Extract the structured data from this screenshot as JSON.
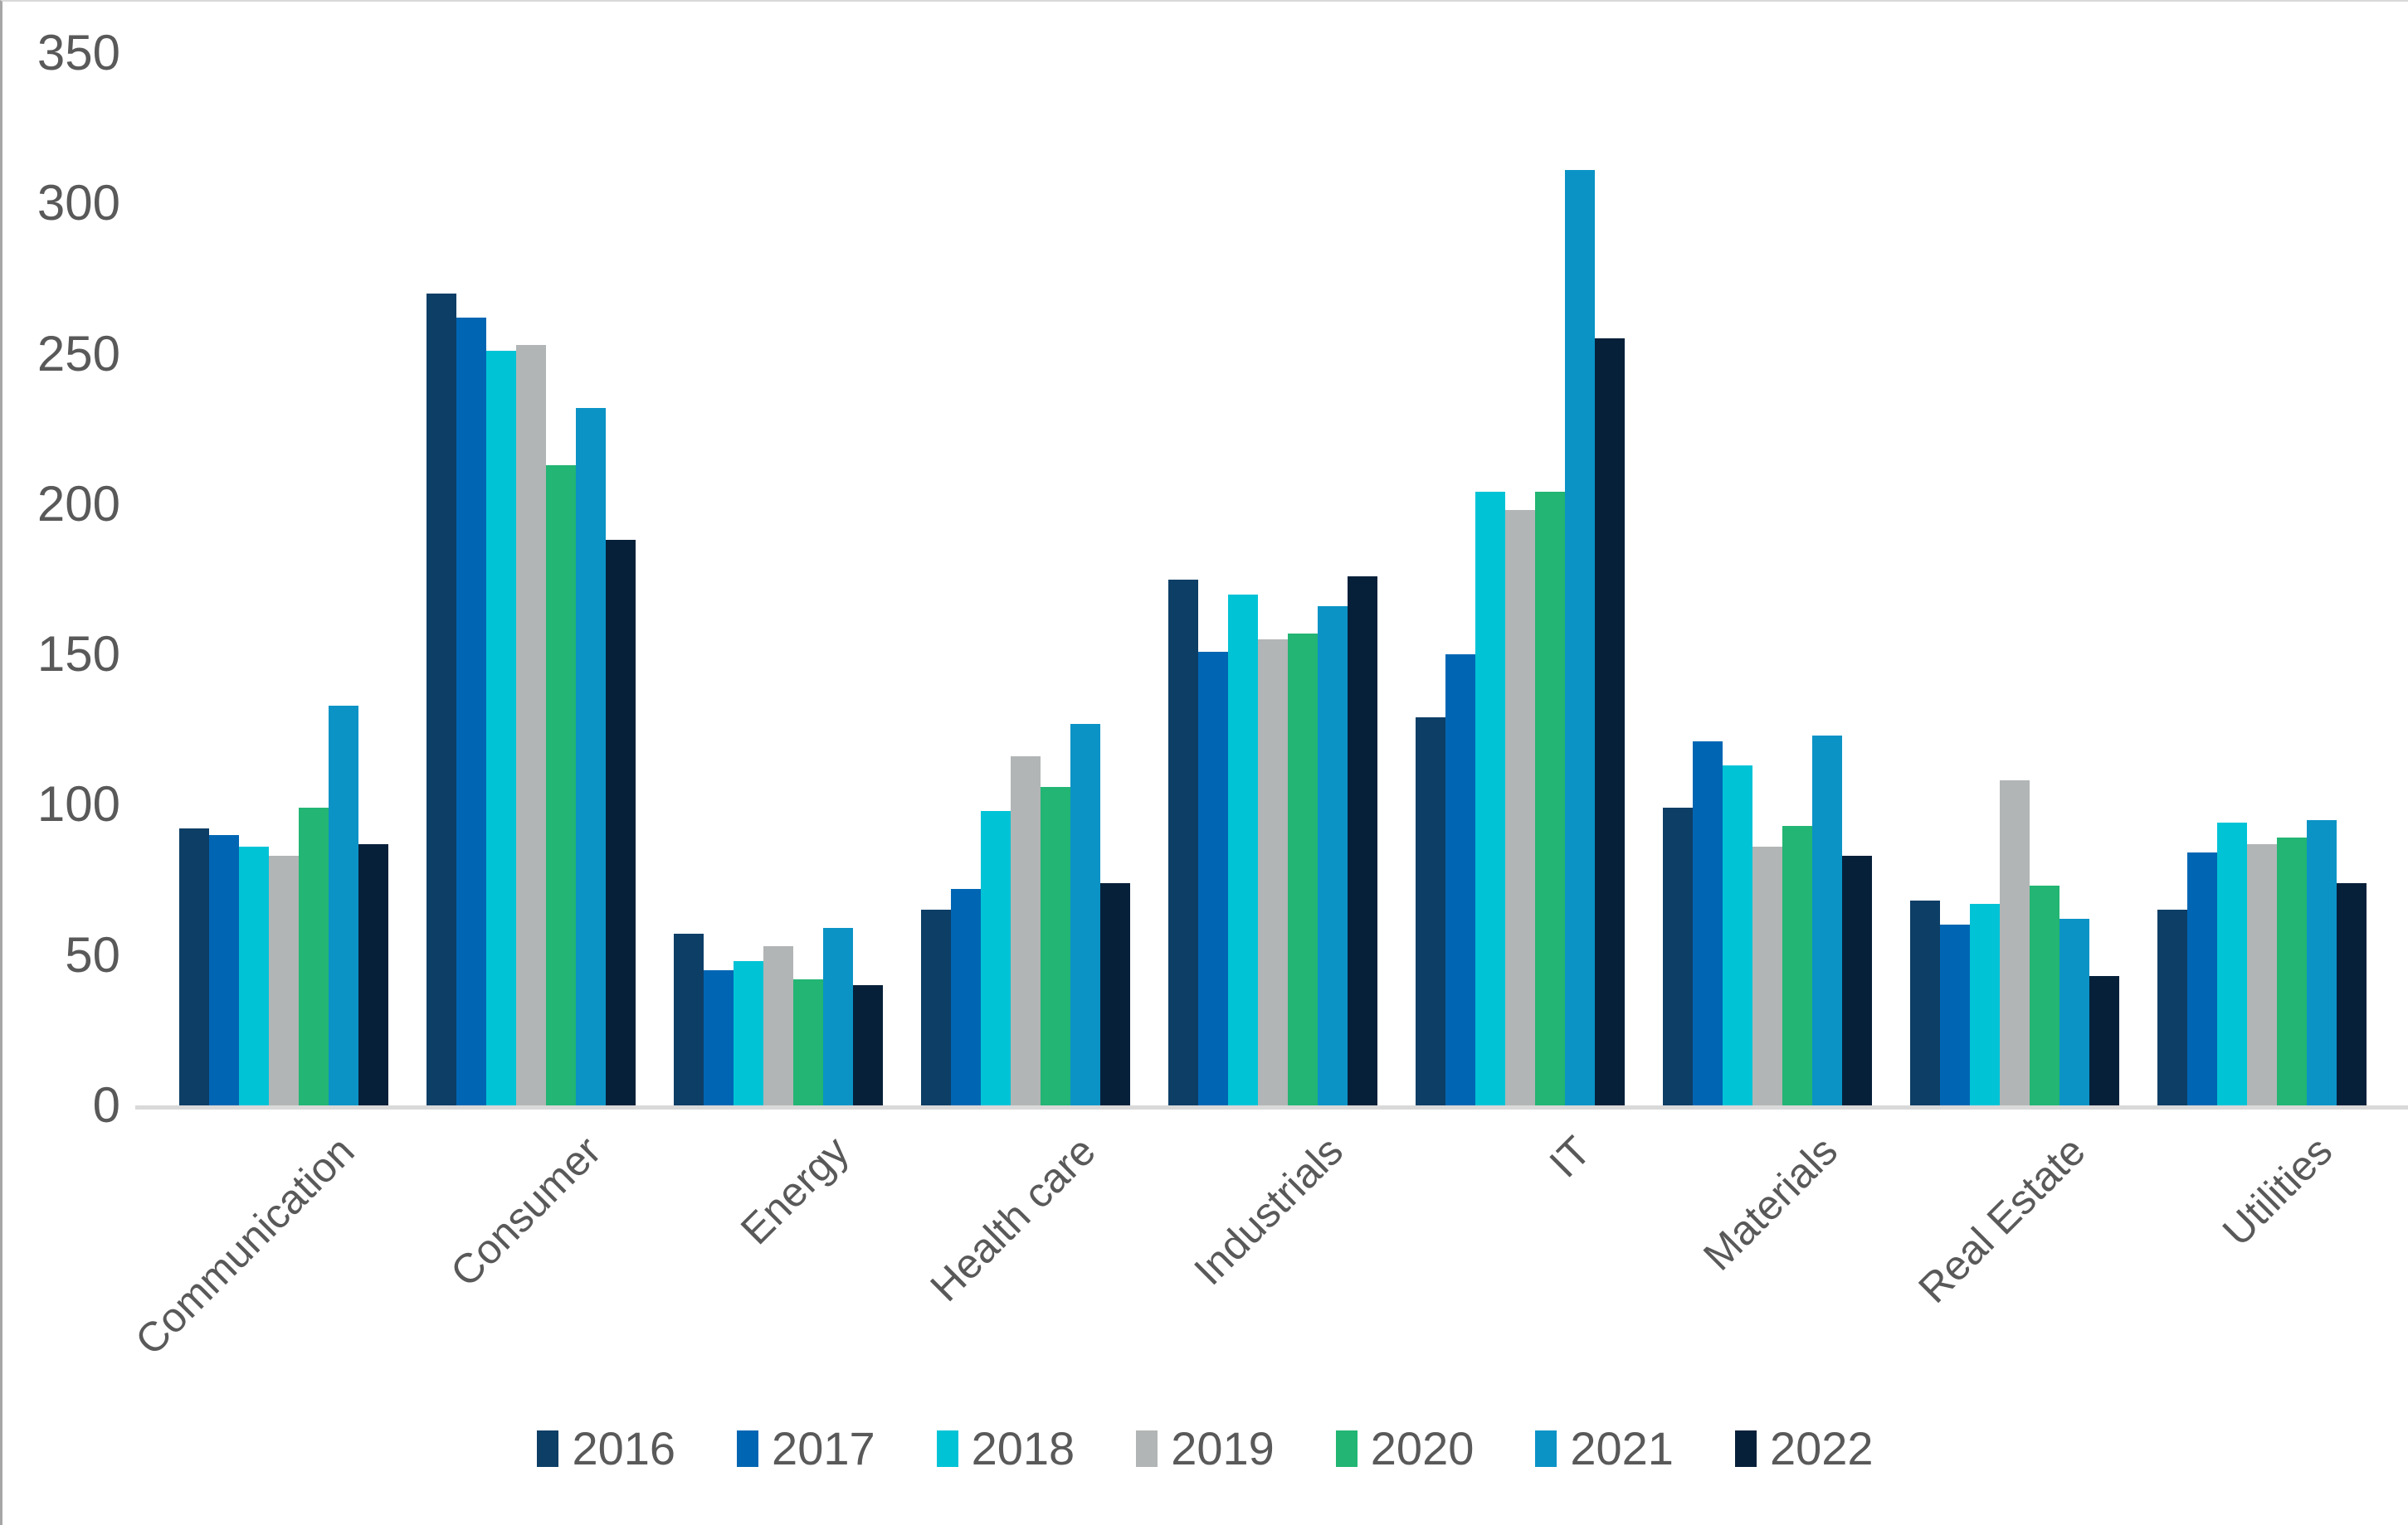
{
  "chart_data": {
    "type": "bar",
    "title": "",
    "xlabel": "",
    "ylabel": "",
    "grid": false,
    "legend_position": "bottom",
    "y_axis": {
      "min": 0,
      "max": 350,
      "step": 50
    },
    "categories": [
      "Communication",
      "Consumer",
      "Energy",
      "Health care",
      "Industrials",
      "IT",
      "Materials",
      "Real Estate",
      "Utilities"
    ],
    "series": [
      {
        "name": "2016",
        "color": "#0d3e66",
        "values": [
          92,
          270,
          57,
          65,
          175,
          129,
          99,
          68,
          65
        ]
      },
      {
        "name": "2017",
        "color": "#0066b3",
        "values": [
          90,
          262,
          45,
          72,
          151,
          150,
          121,
          60,
          84
        ]
      },
      {
        "name": "2018",
        "color": "#00c3d6",
        "values": [
          86,
          251,
          48,
          98,
          170,
          204,
          113,
          67,
          94
        ]
      },
      {
        "name": "2019",
        "color": "#b2b5b5",
        "values": [
          83,
          253,
          53,
          116,
          155,
          198,
          86,
          108,
          87
        ]
      },
      {
        "name": "2020",
        "color": "#22b573",
        "values": [
          99,
          213,
          42,
          106,
          157,
          204,
          93,
          73,
          89
        ]
      },
      {
        "name": "2021",
        "color": "#0b93c6",
        "values": [
          133,
          232,
          59,
          127,
          166,
          311,
          123,
          62,
          95
        ]
      },
      {
        "name": "2022",
        "color": "#07203a",
        "values": [
          87,
          188,
          40,
          74,
          176,
          255,
          83,
          43,
          74
        ]
      }
    ]
  },
  "colors": {
    "axis_line": "#d9d9d9",
    "tick_text": "#595959",
    "background": "#ffffff"
  }
}
